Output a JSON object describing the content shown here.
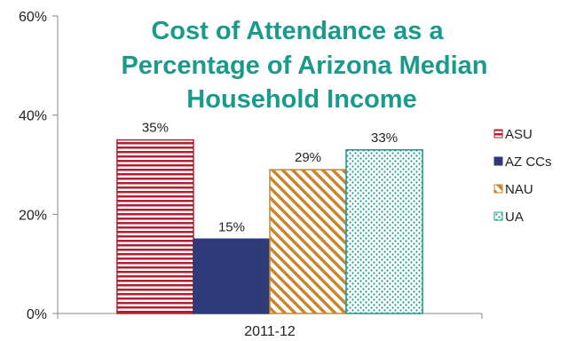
{
  "chart_data": {
    "type": "bar",
    "title_lines": [
      "Cost of Attendance as a",
      "Percentage of Arizona Median",
      "Household Income"
    ],
    "categories": [
      "2011-12"
    ],
    "series": [
      {
        "name": "ASU",
        "values": [
          35
        ],
        "label": "35%",
        "color": "#b02030",
        "pattern": "horizontal-stripes"
      },
      {
        "name": "AZ CCs",
        "values": [
          15
        ],
        "label": "15%",
        "color": "#2e3b78",
        "pattern": "solid"
      },
      {
        "name": "NAU",
        "values": [
          29
        ],
        "label": "29%",
        "color": "#c8862e",
        "pattern": "diagonal-stripes"
      },
      {
        "name": "UA",
        "values": [
          33
        ],
        "label": "33%",
        "color": "#1a9a8c",
        "pattern": "dots"
      }
    ],
    "yticks": [
      {
        "value": 0,
        "label": "0%"
      },
      {
        "value": 20,
        "label": "20%"
      },
      {
        "value": 40,
        "label": "40%"
      },
      {
        "value": 60,
        "label": "60%"
      }
    ],
    "ylim": [
      0,
      60
    ],
    "grid": false,
    "legend_position": "right"
  }
}
